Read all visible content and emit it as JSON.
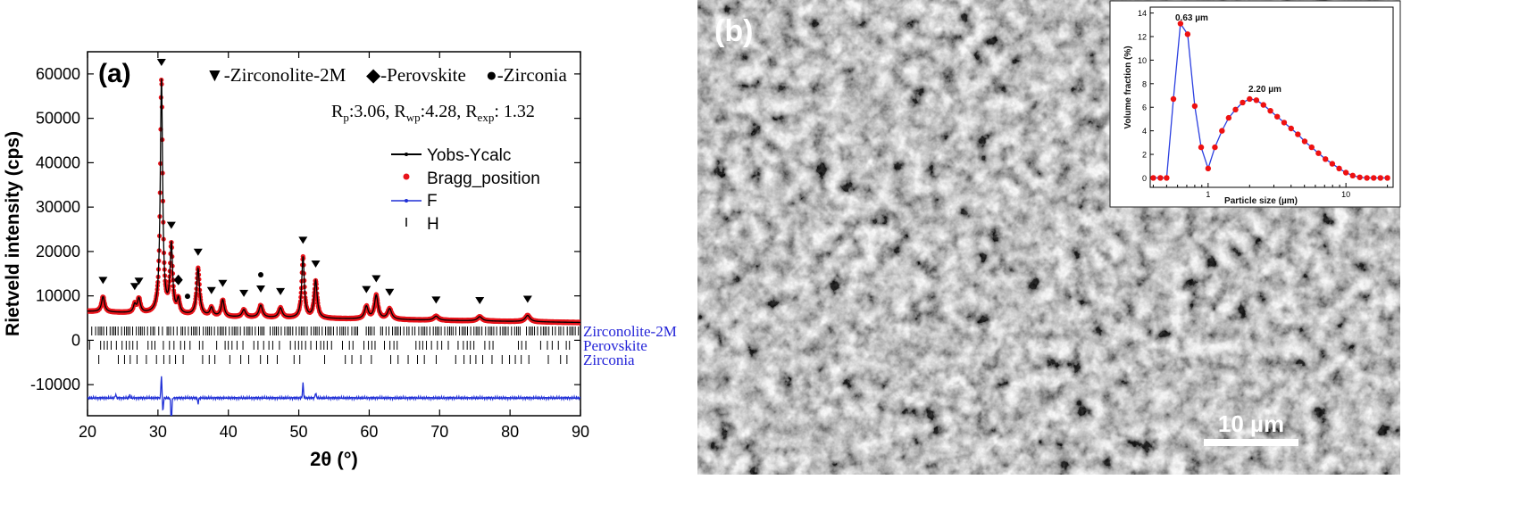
{
  "panel_a": {
    "label": "(a)",
    "legend_phases": [
      {
        "symbol": "▼",
        "text": "-Zirconolite-2M"
      },
      {
        "symbol": "◆",
        "text": "-Perovskite"
      },
      {
        "symbol": "●",
        "text": "-Zirconia"
      }
    ],
    "r_factors": {
      "rp_label": "R",
      "rp_sub": "p",
      "rp_value": ":3.06, ",
      "rwp_label": "R",
      "rwp_sub": "wp",
      "rwp_value": ":4.28, ",
      "rexp_label": "R",
      "rexp_sub": "exp",
      "rexp_value": ": 1.32"
    },
    "legend": [
      "Yobs-Ycalc",
      "Bragg_position",
      "F",
      "H"
    ],
    "phase_labels": [
      "Zirconolite-2M",
      "Perovskite",
      "Zirconia"
    ],
    "colors": {
      "obs": "#e8141b",
      "calc": "#000000",
      "diff": "#1f2fd6",
      "phase_label": "#2424d8"
    }
  },
  "panel_b": {
    "label": "(b)",
    "scale_bar": "10 µm"
  },
  "inset": {
    "peak_labels": [
      "0.63 µm",
      "2.20 µm"
    ]
  },
  "chart_data": [
    {
      "type": "line",
      "title": "",
      "xlabel": "2θ (°)",
      "ylabel": "Rietveld intensity (cps)",
      "xlim": [
        20,
        90
      ],
      "ylim": [
        -17000,
        65000
      ],
      "xticks": [
        20,
        30,
        40,
        50,
        60,
        70,
        80,
        90
      ],
      "yticks": [
        -10000,
        0,
        10000,
        20000,
        30000,
        40000,
        50000,
        60000
      ],
      "peaks": [
        {
          "x": 22.2,
          "y": 9800,
          "w": 0.25
        },
        {
          "x": 26.7,
          "y": 7800,
          "w": 0.22
        },
        {
          "x": 27.3,
          "y": 9200,
          "w": 0.25
        },
        {
          "x": 30.5,
          "y": 58500,
          "w": 0.2
        },
        {
          "x": 31.9,
          "y": 21000,
          "w": 0.22
        },
        {
          "x": 32.9,
          "y": 8800,
          "w": 0.22
        },
        {
          "x": 35.7,
          "y": 16000,
          "w": 0.25
        },
        {
          "x": 37.6,
          "y": 7200,
          "w": 0.25
        },
        {
          "x": 39.2,
          "y": 9000,
          "w": 0.25
        },
        {
          "x": 42.2,
          "y": 6800,
          "w": 0.3
        },
        {
          "x": 44.6,
          "y": 7800,
          "w": 0.3
        },
        {
          "x": 47.4,
          "y": 7200,
          "w": 0.3
        },
        {
          "x": 50.6,
          "y": 18700,
          "w": 0.22
        },
        {
          "x": 52.4,
          "y": 13300,
          "w": 0.25
        },
        {
          "x": 59.6,
          "y": 7500,
          "w": 0.3
        },
        {
          "x": 61.0,
          "y": 10000,
          "w": 0.3
        },
        {
          "x": 62.9,
          "y": 7000,
          "w": 0.35
        },
        {
          "x": 69.5,
          "y": 5400,
          "w": 0.4
        },
        {
          "x": 75.7,
          "y": 5300,
          "w": 0.4
        },
        {
          "x": 82.5,
          "y": 5600,
          "w": 0.4
        }
      ],
      "baseline": [
        [
          20,
          6500
        ],
        [
          40,
          5200
        ],
        [
          90,
          4000
        ]
      ],
      "zirconolite_markers": [
        22.2,
        26.7,
        27.3,
        30.5,
        31.9,
        35.7,
        37.6,
        39.2,
        42.2,
        44.6,
        47.4,
        50.6,
        52.4,
        59.6,
        61.0,
        62.9,
        69.5,
        75.7,
        82.5
      ],
      "perovskite_markers": [
        32.9
      ],
      "zirconia_markers": [
        34.2,
        44.6
      ],
      "diff_baseline": -13000,
      "diff_features": [
        [
          30.5,
          5000
        ],
        [
          30.7,
          -3000
        ],
        [
          31.9,
          -6000
        ],
        [
          50.6,
          3200
        ],
        [
          52.4,
          1200
        ],
        [
          24.0,
          800
        ],
        [
          26.0,
          600
        ],
        [
          35.7,
          -1200
        ]
      ]
    },
    {
      "type": "line",
      "title": "",
      "xlabel": "Particle size (µm)",
      "ylabel": "Volume fraction (%)",
      "xscale": "log",
      "xlim": [
        0.38,
        22
      ],
      "ylim": [
        -0.8,
        14.5
      ],
      "xticks": [
        1,
        10
      ],
      "yticks": [
        0,
        2,
        4,
        6,
        8,
        10,
        12,
        14
      ],
      "x": [
        0.4,
        0.45,
        0.5,
        0.56,
        0.63,
        0.71,
        0.8,
        0.89,
        1.0,
        1.12,
        1.26,
        1.41,
        1.58,
        1.78,
        2.0,
        2.24,
        2.52,
        2.83,
        3.17,
        3.56,
        4.0,
        4.48,
        5.02,
        5.64,
        6.32,
        7.1,
        7.96,
        8.93,
        10.0,
        11.2,
        12.6,
        14.2,
        15.9,
        17.8,
        20.0
      ],
      "y": [
        0,
        0,
        0,
        6.7,
        13.1,
        12.2,
        6.1,
        2.6,
        0.8,
        2.6,
        4.0,
        5.1,
        5.8,
        6.4,
        6.7,
        6.6,
        6.2,
        5.7,
        5.2,
        4.7,
        4.2,
        3.7,
        3.1,
        2.6,
        2.1,
        1.6,
        1.2,
        0.8,
        0.45,
        0.2,
        0.05,
        0,
        0,
        0,
        0
      ]
    }
  ]
}
